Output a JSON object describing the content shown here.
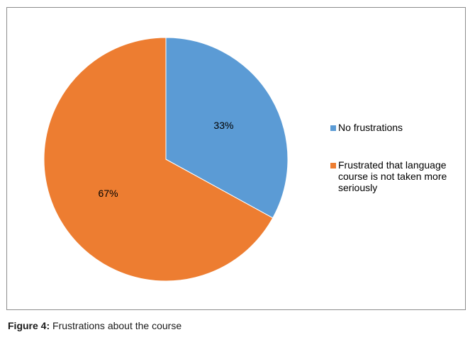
{
  "chart_data": {
    "type": "pie",
    "categories": [
      "No frustrations",
      "Frustrated that language course is not taken more seriously"
    ],
    "values": [
      33,
      67
    ],
    "labels": [
      "33%",
      "67%"
    ],
    "colors": [
      "#5B9BD5",
      "#ED7D31"
    ],
    "legend_position": "right",
    "start_angle": "12 o'clock, clockwise"
  },
  "caption": {
    "label": "Figure 4:",
    "text": " Frustrations about the course"
  }
}
